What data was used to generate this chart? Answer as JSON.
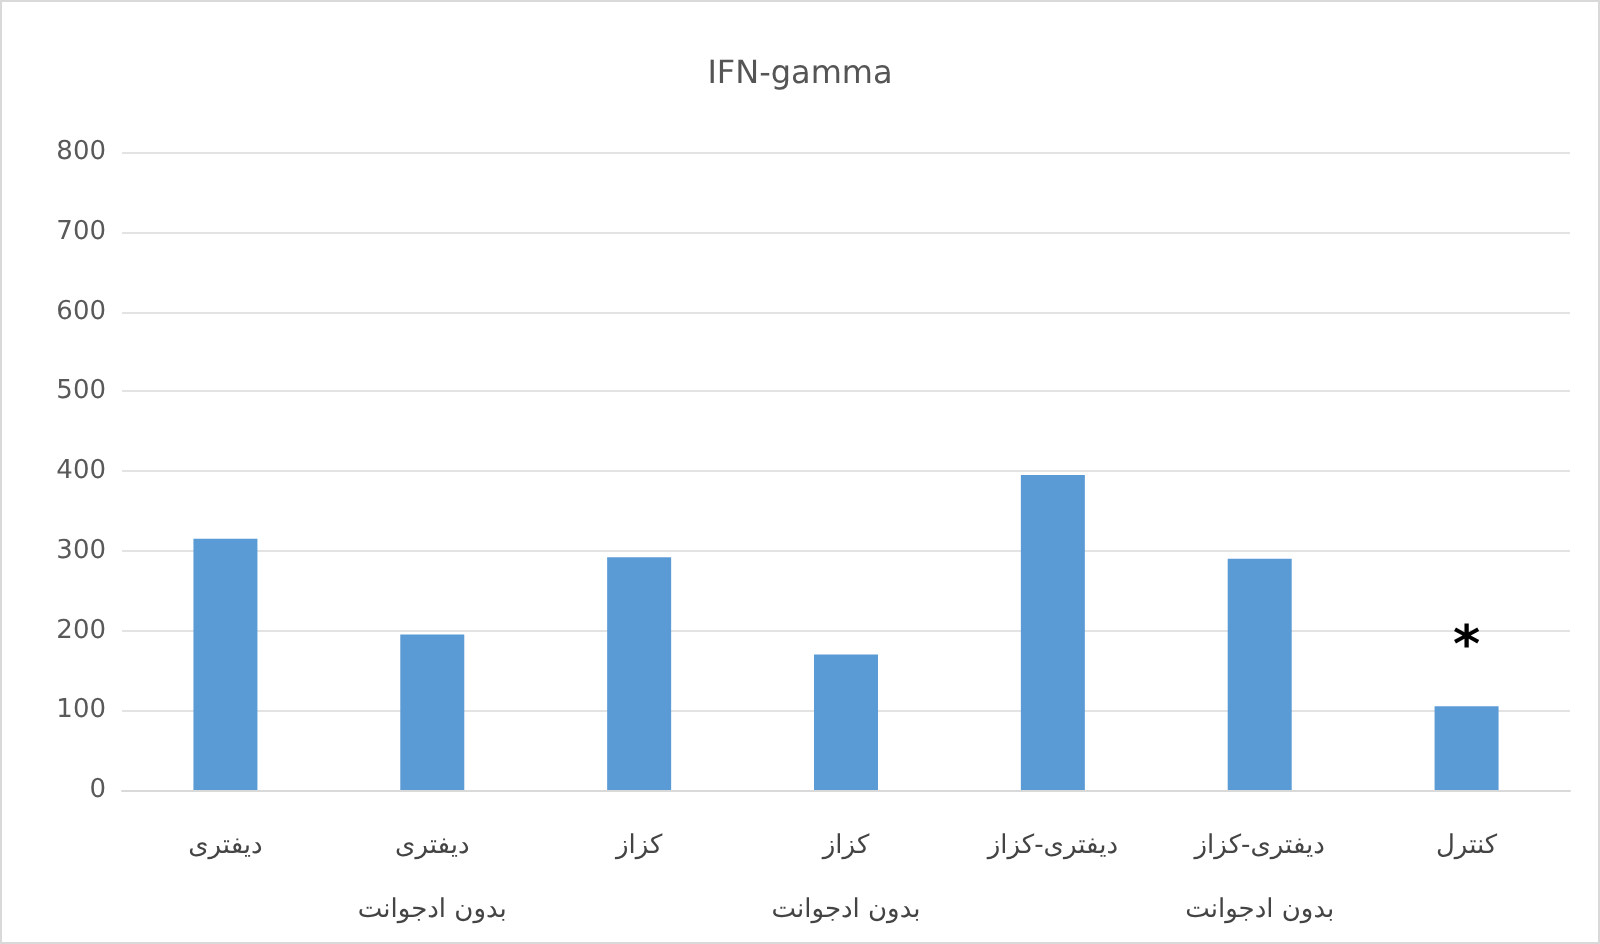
{
  "chart_data": {
    "type": "bar",
    "title": "IFN-gamma",
    "categories": [
      "دیفتری",
      "دیفتری\nبدون ادجوانت",
      "کزاز",
      "کزاز\nبدون ادجوانت",
      "دیفتری-کزاز",
      "دیفتری-کزاز\nبدون ادجوانت",
      "کنترل"
    ],
    "values": [
      315,
      195,
      292,
      170,
      395,
      290,
      105
    ],
    "color": "#5b9bd5",
    "ylim": [
      0,
      800
    ],
    "yticks": [
      0,
      100,
      200,
      300,
      400,
      500,
      600,
      700,
      800
    ],
    "grid": "y",
    "annotations": [
      "*"
    ]
  }
}
